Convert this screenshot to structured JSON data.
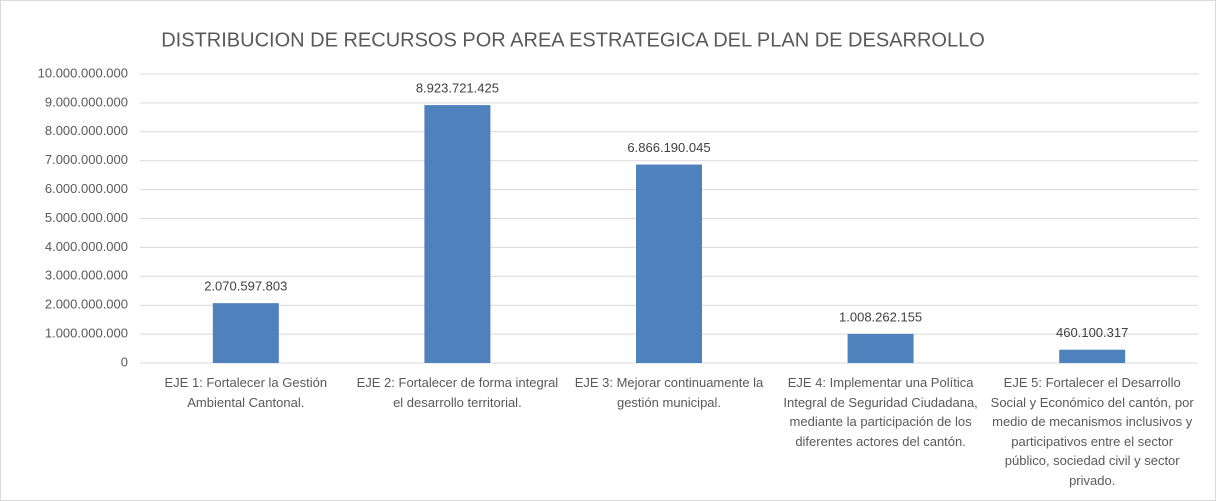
{
  "chart_data": {
    "type": "bar",
    "title": "DISTRIBUCION DE RECURSOS POR AREA ESTRATEGICA DEL PLAN DE DESARROLLO",
    "categories": [
      "EJE 1: Fortalecer la Gestión Ambiental Cantonal.",
      "EJE 2: Fortalecer de  forma integral el desarrollo territorial.",
      "EJE 3: Mejorar continuamente la gestión municipal.",
      "EJE 4: Implementar una Política Integral de Seguridad Ciudadana, mediante la participación de los diferentes actores del cantón.",
      "EJE 5: Fortalecer el Desarrollo Social y Económico del cantón, por medio de mecanismos inclusivos y participativos entre el sector público, sociedad civil y sector privado."
    ],
    "values": [
      2070597803,
      8923721425,
      6866190045,
      1008262155,
      460100317
    ],
    "value_labels": [
      "2.070.597.803",
      "8.923.721.425",
      "6.866.190.045",
      "1.008.262.155",
      "460.100.317"
    ],
    "color": "#4f81bd",
    "ylim": [
      0,
      10000000000
    ],
    "yticks": [
      0,
      {
        "value": 1000000000,
        "label": "1.000.000.000"
      },
      {
        "value": 2000000000,
        "label": "2.000.000.000"
      },
      {
        "value": 3000000000,
        "label": "3.000.000.000"
      },
      {
        "value": 4000000000,
        "label": "4.000.000.000"
      },
      {
        "value": 5000000000,
        "label": "5.000.000.000"
      },
      {
        "value": 6000000000,
        "label": "6.000.000.000"
      },
      {
        "value": 7000000000,
        "label": "7.000.000.000"
      },
      {
        "value": 8000000000,
        "label": "8.000.000.000"
      },
      {
        "value": 9000000000,
        "label": "9.000.000.000"
      },
      {
        "value": 10000000000,
        "label": "10.000.000.000"
      }
    ],
    "grid": true
  }
}
